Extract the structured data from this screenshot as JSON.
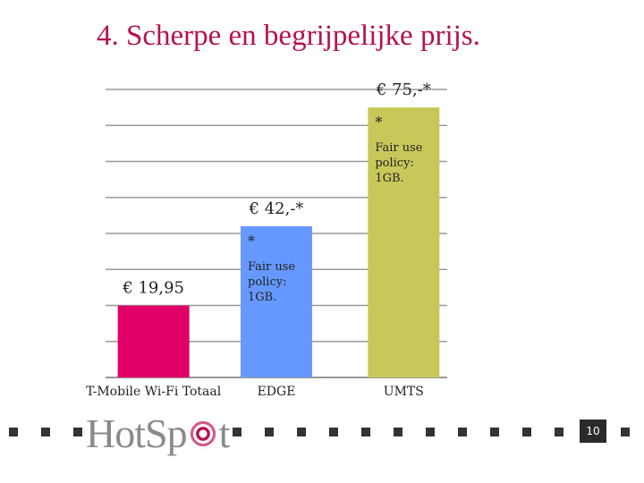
{
  "slide": {
    "title": "4. Scherpe en begrijpelijke prijs.",
    "page_number": "10",
    "logo_text_part1": "HotSp",
    "logo_text_part2": "t"
  },
  "chart_data": {
    "type": "bar",
    "categories": [
      "T-Mobile Wi-Fi Totaal",
      "EDGE",
      "UMTS"
    ],
    "values": [
      19.95,
      42,
      75
    ],
    "value_labels": [
      "€ 19,95",
      "€ 42,-*",
      "€ 75,-*"
    ],
    "bar_notes": [
      [],
      [
        "*",
        "Fair use",
        "policy:",
        "1GB."
      ],
      [
        "*",
        "Fair use",
        "policy:",
        "1GB."
      ]
    ],
    "colors": [
      "#e00068",
      "#6699ff",
      "#c8c85a"
    ],
    "ylim": [
      0,
      80
    ],
    "grid": true
  }
}
